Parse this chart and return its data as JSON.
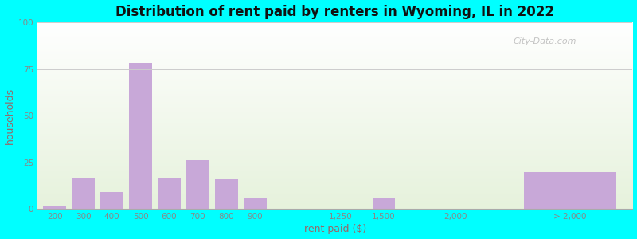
{
  "title": "Distribution of rent paid by renters in Wyoming, IL in 2022",
  "xlabel": "rent paid ($)",
  "ylabel": "households",
  "bar_color": "#c8a8d8",
  "categories": [
    "200",
    "300",
    "400",
    "500",
    "600",
    "700",
    "800",
    "900",
    "1,250",
    "1,500",
    "2,000",
    "> 2,000"
  ],
  "values": [
    2,
    17,
    9,
    78,
    17,
    26,
    16,
    6,
    0,
    6,
    0,
    20
  ],
  "ylim": [
    0,
    100
  ],
  "yticks": [
    0,
    25,
    50,
    75,
    100
  ],
  "outer_bg": "#00ffff",
  "axis_label_color": "#996666",
  "tick_label_color": "#888888",
  "grid_color": "#cccccc",
  "watermark": "City-Data.com",
  "title_fontsize": 12,
  "xlabel_fontsize": 9,
  "ylabel_fontsize": 9,
  "tick_fontsize": 7.5
}
